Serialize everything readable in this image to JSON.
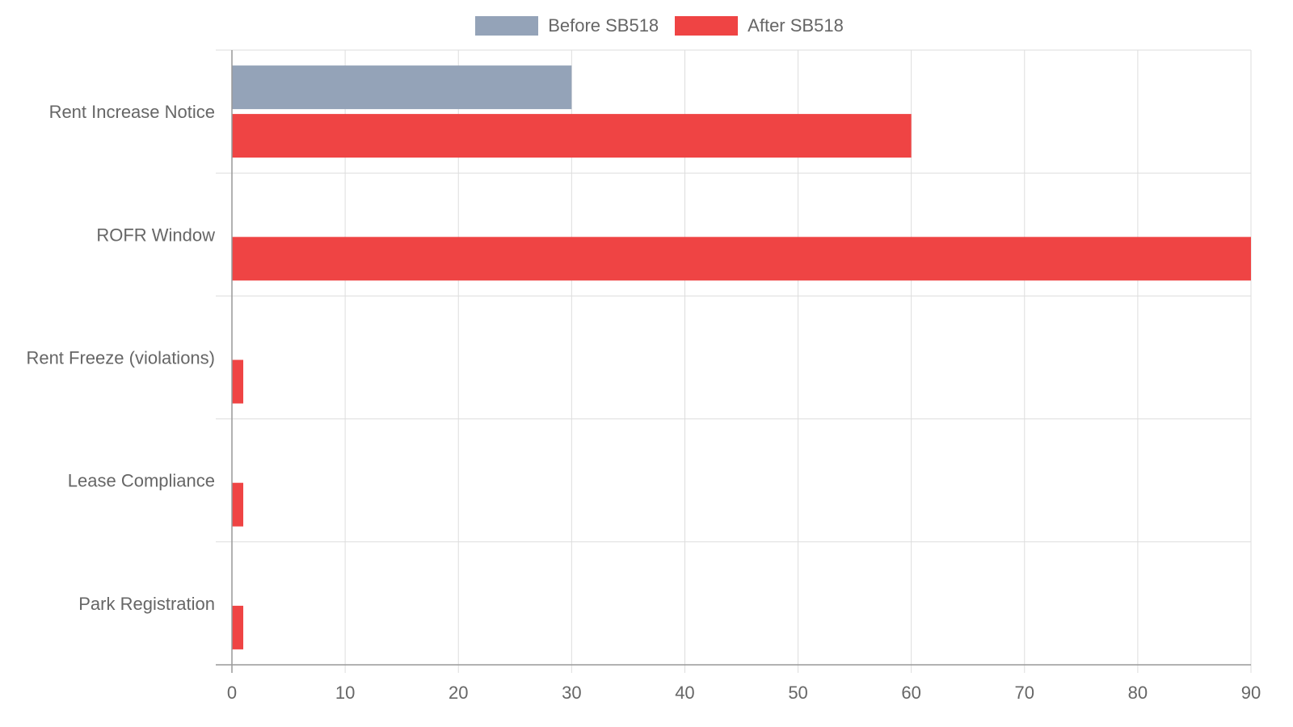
{
  "chart_data": {
    "type": "bar",
    "orientation": "horizontal",
    "categories": [
      "Rent Increase Notice",
      "ROFR Window",
      "Rent Freeze (violations)",
      "Lease Compliance",
      "Park Registration"
    ],
    "series": [
      {
        "name": "Before SB518",
        "color": "#94a3b8",
        "values": [
          30,
          0,
          0,
          0,
          0
        ]
      },
      {
        "name": "After SB518",
        "color": "#ef4444",
        "values": [
          60,
          90,
          1,
          1,
          1
        ]
      }
    ],
    "xlim": [
      0,
      90
    ],
    "xticks": [
      0,
      10,
      20,
      30,
      40,
      50,
      60,
      70,
      80,
      90
    ],
    "grid": true,
    "legend_position": "top-center",
    "title": "",
    "xlabel": "",
    "ylabel": ""
  }
}
